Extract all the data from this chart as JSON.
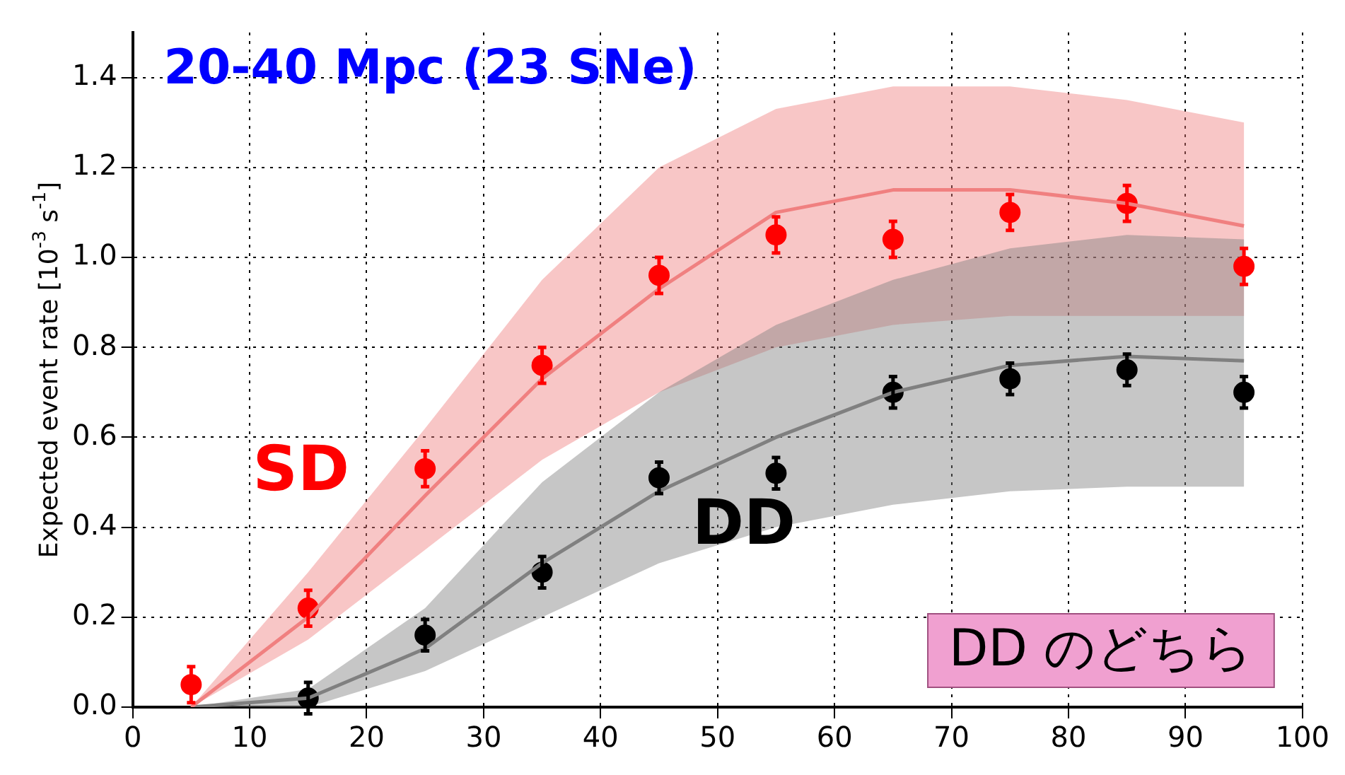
{
  "chart_data": {
    "type": "scatter",
    "title": "20-40 Mpc (23 SNe)",
    "ylabel": "Expected event rate [10$^{-3}$ s$^{-1}$]",
    "annotations": [
      "DD のどちら"
    ],
    "xlim": [
      0,
      100
    ],
    "xticks": [
      0,
      10,
      20,
      30,
      40,
      50,
      60,
      70,
      80,
      90,
      100
    ],
    "ylim": [
      0,
      1.5
    ],
    "yticks": [
      {
        "value": 0,
        "label": "0.0"
      },
      0.2,
      0.4,
      0.6,
      0.8,
      {
        "value": 1,
        "label": "1.0"
      },
      1.2,
      1.4
    ],
    "grid": true,
    "line_style": "solid",
    "series": [
      {
        "type": "line",
        "color": "#f08080",
        "x": [
          5,
          15,
          25,
          35,
          45,
          55,
          65,
          75,
          85,
          95
        ],
        "values": [
          0.0,
          0.2,
          0.47,
          0.73,
          0.93,
          1.1,
          1.15,
          1.15,
          1.12,
          1.07
        ],
        "lower": [
          0.0,
          0.15,
          0.35,
          0.55,
          0.7,
          0.8,
          0.85,
          0.87,
          0.87,
          0.87
        ],
        "upper": [
          0.0,
          0.3,
          0.62,
          0.95,
          1.2,
          1.33,
          1.38,
          1.38,
          1.35,
          1.3
        ]
      },
      {
        "type": "line",
        "color": "#808080",
        "x": [
          5,
          15,
          25,
          35,
          45,
          55,
          65,
          75,
          85,
          95
        ],
        "values": [
          0.0,
          0.02,
          0.13,
          0.32,
          0.48,
          0.6,
          0.7,
          0.76,
          0.78,
          0.77
        ],
        "lower": [
          0.0,
          0.0,
          0.08,
          0.2,
          0.32,
          0.4,
          0.45,
          0.48,
          0.49,
          0.49
        ],
        "upper": [
          0.0,
          0.04,
          0.22,
          0.5,
          0.7,
          0.85,
          0.95,
          1.02,
          1.05,
          1.04
        ]
      },
      {
        "type": "scatter",
        "name": "SD",
        "color": "#ff0000",
        "marker": "circle",
        "x": [
          5,
          15,
          25,
          35,
          45,
          55,
          65,
          75,
          85,
          95
        ],
        "values": [
          0.05,
          0.22,
          0.53,
          0.76,
          0.96,
          1.05,
          1.04,
          1.1,
          1.12,
          0.98
        ],
        "errors": [
          0.04,
          0.04,
          0.04,
          0.04,
          0.04,
          0.04,
          0.04,
          0.04,
          0.04,
          0.04
        ]
      },
      {
        "type": "scatter",
        "name": "DD",
        "color": "#000000",
        "marker": "circle",
        "x": [
          15,
          25,
          35,
          45,
          55,
          65,
          75,
          85,
          95
        ],
        "values": [
          0.02,
          0.16,
          0.3,
          0.51,
          0.52,
          0.7,
          0.73,
          0.75,
          0.7
        ],
        "errors": [
          0.035,
          0.035,
          0.035,
          0.035,
          0.035,
          0.035,
          0.035,
          0.035,
          0.035
        ]
      }
    ]
  }
}
